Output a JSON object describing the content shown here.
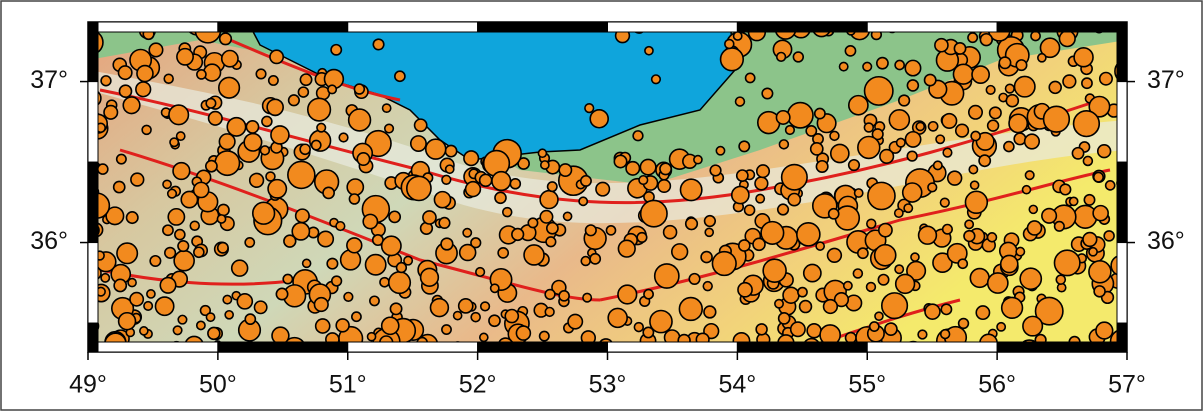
{
  "map": {
    "xlim": [
      49,
      57
    ],
    "ylim": [
      35.32,
      37.37
    ],
    "xticks": [
      {
        "value": 49,
        "label": "49°"
      },
      {
        "value": 50,
        "label": "50°"
      },
      {
        "value": 51,
        "label": "51°"
      },
      {
        "value": 52,
        "label": "52°"
      },
      {
        "value": 53,
        "label": "53°"
      },
      {
        "value": 54,
        "label": "54°"
      },
      {
        "value": 55,
        "label": "55°"
      },
      {
        "value": 56,
        "label": "56°"
      },
      {
        "value": 57,
        "label": "57°"
      }
    ],
    "yticks": [
      {
        "value": 36,
        "label": "36°"
      },
      {
        "value": 37,
        "label": "37°"
      }
    ]
  }
}
